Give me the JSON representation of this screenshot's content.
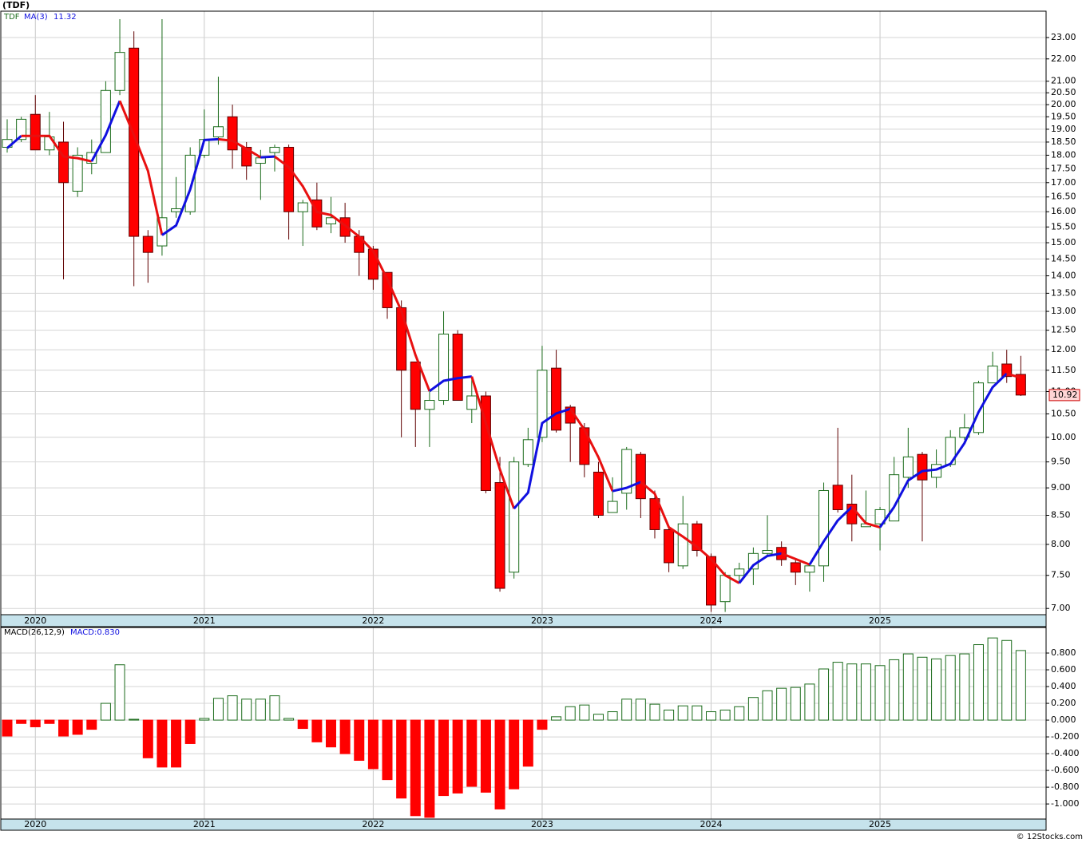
{
  "source": "© 12Stocks.com",
  "chart_data": [
    {
      "type": "candlestick",
      "title": "(TDF)",
      "symbol": "TDF",
      "ma_name": "MA(3)",
      "ma_label": "11.32",
      "close_label": "10.92",
      "up_color": "#1a6b1a",
      "down_color": "#ff0000",
      "ma_colors": [
        "#1010e0",
        "#e81010"
      ],
      "log_scale": true,
      "grid": true,
      "categories": [
        null,
        null,
        "2020",
        null,
        null,
        null,
        null,
        null,
        null,
        null,
        null,
        null,
        null,
        null,
        "2021",
        null,
        null,
        null,
        null,
        null,
        null,
        null,
        null,
        null,
        null,
        null,
        "2022",
        null,
        null,
        null,
        null,
        null,
        null,
        null,
        null,
        null,
        null,
        null,
        "2023",
        null,
        null,
        null,
        null,
        null,
        null,
        null,
        null,
        null,
        null,
        null,
        "2024",
        null,
        null,
        null,
        null,
        null,
        null,
        null,
        null,
        null,
        null,
        null,
        "2025",
        null,
        null,
        null,
        null,
        null,
        null,
        null,
        null,
        null,
        null
      ],
      "open": [
        18.3,
        18.6,
        19.6,
        18.2,
        18.5,
        16.7,
        17.7,
        18.1,
        20.6,
        22.5,
        15.2,
        14.9,
        16.0,
        16.0,
        18.0,
        18.7,
        19.5,
        18.3,
        17.7,
        18.1,
        18.3,
        16.0,
        16.4,
        15.6,
        15.8,
        15.2,
        14.8,
        14.1,
        13.1,
        11.7,
        10.6,
        10.8,
        12.4,
        10.6,
        10.9,
        9.1,
        7.55,
        9.45,
        10.0,
        11.55,
        10.65,
        10.2,
        9.3,
        8.55,
        8.9,
        9.65,
        8.8,
        8.25,
        7.65,
        8.35,
        7.8,
        7.1,
        7.5,
        7.6,
        7.85,
        7.95,
        7.7,
        7.55,
        7.65,
        9.05,
        8.7,
        8.3,
        8.35,
        8.4,
        9.2,
        9.65,
        9.2,
        9.45,
        10.0,
        10.1,
        11.2,
        11.65,
        11.4
      ],
      "high": [
        19.4,
        19.5,
        20.4,
        19.7,
        19.3,
        18.3,
        18.6,
        21.0,
        23.9,
        23.3,
        15.4,
        23.9,
        17.2,
        18.3,
        19.8,
        21.2,
        20.0,
        18.5,
        18.2,
        18.4,
        18.4,
        16.4,
        17.0,
        16.5,
        16.3,
        15.4,
        14.9,
        14.1,
        13.3,
        11.7,
        11.0,
        13.0,
        12.5,
        11.3,
        11.0,
        9.6,
        9.6,
        10.2,
        12.1,
        12.0,
        10.7,
        10.3,
        9.5,
        9.2,
        9.8,
        9.7,
        8.95,
        8.3,
        8.85,
        8.4,
        7.85,
        7.55,
        7.7,
        7.95,
        8.5,
        8.05,
        7.75,
        7.7,
        9.1,
        10.2,
        9.25,
        8.95,
        8.65,
        9.6,
        10.2,
        9.7,
        9.75,
        10.15,
        10.5,
        11.25,
        11.95,
        12.0,
        11.85
      ],
      "low": [
        18.1,
        18.5,
        18.2,
        18.0,
        13.9,
        16.5,
        17.3,
        18.1,
        20.4,
        13.7,
        13.8,
        14.6,
        15.8,
        15.9,
        17.9,
        18.4,
        17.5,
        17.1,
        16.4,
        17.4,
        15.1,
        14.9,
        15.4,
        15.3,
        15.0,
        14.0,
        13.6,
        12.8,
        10.0,
        9.8,
        9.8,
        10.7,
        10.8,
        10.3,
        8.9,
        7.25,
        7.45,
        9.4,
        9.9,
        10.1,
        9.5,
        9.2,
        8.45,
        8.55,
        8.6,
        8.45,
        8.1,
        7.55,
        7.6,
        7.8,
        6.95,
        6.95,
        7.4,
        7.35,
        7.8,
        7.65,
        7.35,
        7.25,
        7.4,
        8.55,
        8.05,
        8.3,
        7.9,
        8.4,
        9.0,
        8.05,
        9.0,
        9.4,
        9.95,
        10.05,
        11.2,
        11.2,
        10.9
      ],
      "close": [
        18.6,
        19.4,
        18.2,
        18.7,
        17.0,
        18.0,
        18.1,
        20.6,
        22.3,
        15.2,
        14.7,
        15.8,
        16.1,
        18.0,
        18.6,
        19.1,
        18.2,
        17.6,
        17.9,
        18.3,
        16.0,
        16.3,
        15.5,
        15.8,
        15.2,
        14.7,
        13.9,
        13.1,
        11.5,
        10.6,
        10.8,
        12.4,
        10.8,
        10.9,
        8.95,
        7.3,
        9.5,
        9.95,
        11.5,
        10.15,
        10.3,
        9.45,
        8.5,
        8.75,
        9.75,
        8.8,
        8.25,
        7.7,
        8.35,
        7.9,
        7.05,
        7.5,
        7.6,
        7.85,
        7.9,
        7.75,
        7.55,
        7.65,
        8.95,
        8.6,
        8.35,
        8.35,
        8.6,
        9.25,
        9.6,
        9.15,
        9.45,
        10.0,
        10.2,
        11.2,
        11.6,
        11.35,
        10.92
      ],
      "ma": [
        18.27,
        18.74,
        18.74,
        18.74,
        17.95,
        17.89,
        17.77,
        18.77,
        20.16,
        18.77,
        17.42,
        15.24,
        15.55,
        16.76,
        18.58,
        18.61,
        18.55,
        18.24,
        17.92,
        17.95,
        17.56,
        16.87,
        15.99,
        15.89,
        15.55,
        15.19,
        14.74,
        13.9,
        13.01,
        11.87,
        11.01,
        11.25,
        11.31,
        11.35,
        10.3,
        9.35,
        8.62,
        8.91,
        10.3,
        10.51,
        10.61,
        10.16,
        9.59,
        8.94,
        9.0,
        9.11,
        8.89,
        8.29,
        8.13,
        7.96,
        7.76,
        7.5,
        7.38,
        7.66,
        7.81,
        7.85,
        7.76,
        7.67,
        8.05,
        8.41,
        8.65,
        8.36,
        8.29,
        8.65,
        9.14,
        9.32,
        9.35,
        9.46,
        9.88,
        10.54,
        11.1,
        11.42,
        11.32
      ],
      "ylim": [
        6.91,
        24.3
      ],
      "yticks": [
        {
          "value": 7,
          "label": "7.00"
        },
        {
          "value": 7.5,
          "label": "7.50"
        },
        {
          "value": 8,
          "label": "8.00"
        },
        {
          "value": 8.5,
          "label": "8.50"
        },
        {
          "value": 9,
          "label": "9.00"
        },
        {
          "value": 9.5,
          "label": "9.50"
        },
        {
          "value": 10,
          "label": "10.00"
        },
        {
          "value": 10.5,
          "label": "10.50"
        },
        {
          "value": 11,
          "label": "11.00"
        },
        {
          "value": 11.5,
          "label": "11.50"
        },
        {
          "value": 12,
          "label": "12.00"
        },
        {
          "value": 12.5,
          "label": "12.50"
        },
        {
          "value": 13,
          "label": "13.00"
        },
        {
          "value": 13.5,
          "label": "13.50"
        },
        {
          "value": 14,
          "label": "14.00"
        },
        {
          "value": 14.5,
          "label": "14.50"
        },
        {
          "value": 15,
          "label": "15.00"
        },
        {
          "value": 15.5,
          "label": "15.50"
        },
        {
          "value": 16,
          "label": "16.00"
        },
        {
          "value": 16.5,
          "label": "16.50"
        },
        {
          "value": 17,
          "label": "17.00"
        },
        {
          "value": 17.5,
          "label": "17.50"
        },
        {
          "value": 18,
          "label": "18.00"
        },
        {
          "value": 18.5,
          "label": "18.50"
        },
        {
          "value": 19,
          "label": "19.00"
        },
        {
          "value": 19.5,
          "label": "19.50"
        },
        {
          "value": 20,
          "label": "20.00"
        },
        {
          "value": 20.5,
          "label": "20.50"
        },
        {
          "value": 21,
          "label": "21.00"
        },
        {
          "value": 22,
          "label": "22.00"
        },
        {
          "value": 23,
          "label": "23.00"
        }
      ]
    },
    {
      "type": "bar",
      "title": "MACD(26,12,9)",
      "legend": "MACD:0.830",
      "pos_color": "#1a6b1a",
      "neg_color": "#ff0000",
      "grid": true,
      "values": [
        -0.19,
        -0.04,
        -0.08,
        -0.04,
        -0.19,
        -0.17,
        -0.11,
        0.2,
        0.66,
        0.01,
        -0.45,
        -0.56,
        -0.56,
        -0.28,
        0.02,
        0.26,
        0.29,
        0.25,
        0.25,
        0.29,
        0.02,
        -0.1,
        -0.26,
        -0.32,
        -0.4,
        -0.48,
        -0.58,
        -0.71,
        -0.93,
        -1.14,
        -1.16,
        -0.9,
        -0.87,
        -0.79,
        -0.86,
        -1.06,
        -0.82,
        -0.55,
        -0.11,
        0.04,
        0.16,
        0.18,
        0.07,
        0.1,
        0.25,
        0.25,
        0.19,
        0.12,
        0.17,
        0.17,
        0.1,
        0.12,
        0.16,
        0.27,
        0.35,
        0.38,
        0.39,
        0.43,
        0.61,
        0.69,
        0.67,
        0.67,
        0.65,
        0.72,
        0.79,
        0.75,
        0.73,
        0.77,
        0.79,
        0.9,
        0.98,
        0.95,
        0.83
      ],
      "ylim": [
        -1.18,
        1.105
      ],
      "yticks": [
        {
          "value": 0.8,
          "label": "0.800"
        },
        {
          "value": 0.6,
          "label": "0.600"
        },
        {
          "value": 0.4,
          "label": "0.400"
        },
        {
          "value": 0.2,
          "label": "0.200"
        },
        {
          "value": 0,
          "label": "0.000"
        },
        {
          "value": -0.2,
          "label": "-0.200"
        },
        {
          "value": -0.4,
          "label": "-0.400"
        },
        {
          "value": -0.6,
          "label": "-0.600"
        },
        {
          "value": -0.8,
          "label": "-0.800"
        },
        {
          "value": -1,
          "label": "-1.000"
        }
      ]
    }
  ]
}
